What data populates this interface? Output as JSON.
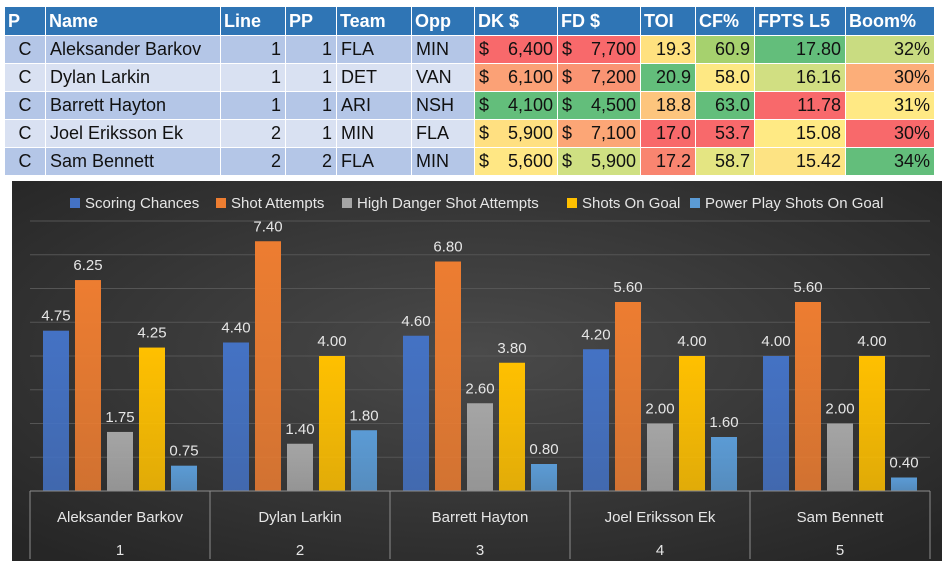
{
  "table": {
    "headers": [
      "P",
      "Name",
      "Line",
      "PP",
      "Team",
      "Opp",
      "DK $",
      "FD $",
      "TOI",
      "CF%",
      "FPTS L5",
      "Boom%"
    ],
    "rows": [
      {
        "p": "C",
        "name": "Aleksander Barkov",
        "line": "1",
        "pp": "1",
        "team": "FLA",
        "opp": "MIN",
        "dk": "6,400",
        "fd": "7,700",
        "toi": "19.3",
        "cf": "60.9",
        "fpts": "17.80",
        "boom": "32%",
        "colors": {
          "dk": "#f8696b",
          "fd": "#f8696b",
          "toi": "#ffe17f",
          "cf": "#a6d16e",
          "fpts": "#63be7b",
          "boom": "#c9dc81"
        }
      },
      {
        "p": "C",
        "name": "Dylan Larkin",
        "line": "1",
        "pp": "1",
        "team": "DET",
        "opp": "VAN",
        "dk": "6,100",
        "fd": "7,200",
        "toi": "20.9",
        "cf": "58.0",
        "fpts": "16.16",
        "boom": "30%",
        "colors": {
          "dk": "#fba176",
          "fd": "#fa9473",
          "toi": "#63be7b",
          "cf": "#fee883",
          "fpts": "#d1df82",
          "boom": "#fcae79"
        }
      },
      {
        "p": "C",
        "name": "Barrett Hayton",
        "line": "1",
        "pp": "1",
        "team": "ARI",
        "opp": "NSH",
        "dk": "4,100",
        "fd": "4,500",
        "toi": "18.8",
        "cf": "63.0",
        "fpts": "11.78",
        "boom": "31%",
        "colors": {
          "dk": "#63be7b",
          "fd": "#63be7b",
          "toi": "#fdc57d",
          "cf": "#63be7b",
          "fpts": "#f8696b",
          "boom": "#ffe984"
        }
      },
      {
        "p": "C",
        "name": "Joel Eriksson Ek",
        "line": "2",
        "pp": "1",
        "team": "MIN",
        "opp": "FLA",
        "dk": "5,900",
        "fd": "7,100",
        "toi": "17.0",
        "cf": "53.7",
        "fpts": "15.08",
        "boom": "30%",
        "colors": {
          "dk": "#ffe081",
          "fd": "#fca676",
          "toi": "#f8696b",
          "cf": "#f8696b",
          "fpts": "#ffea84",
          "boom": "#f8696b"
        }
      },
      {
        "p": "C",
        "name": "Sam Bennett",
        "line": "2",
        "pp": "2",
        "team": "FLA",
        "opp": "MIN",
        "dk": "5,600",
        "fd": "5,900",
        "toi": "17.2",
        "cf": "58.7",
        "fpts": "15.42",
        "boom": "34%",
        "colors": {
          "dk": "#ffe784",
          "fd": "#cfe082",
          "toi": "#f98570",
          "cf": "#e4e582",
          "fpts": "#fde383",
          "boom": "#63be7b"
        }
      }
    ]
  },
  "chart_data": {
    "type": "bar",
    "background": "#3b3b3b",
    "legend_position": "top",
    "categories": [
      {
        "name": "Aleksander Barkov",
        "index": "1"
      },
      {
        "name": "Dylan Larkin",
        "index": "2"
      },
      {
        "name": "Barrett Hayton",
        "index": "3"
      },
      {
        "name": "Joel Eriksson Ek",
        "index": "4"
      },
      {
        "name": "Sam Bennett",
        "index": "5"
      }
    ],
    "series": [
      {
        "name": "Scoring Chances",
        "color": "#4472c4",
        "values": [
          4.75,
          4.4,
          4.6,
          4.2,
          4.0
        ],
        "labels": [
          "4.75",
          "4.40",
          "4.60",
          "4.20",
          "4.00"
        ]
      },
      {
        "name": "Shot Attempts",
        "color": "#ed7d31",
        "values": [
          6.25,
          7.4,
          6.8,
          5.6,
          5.6
        ],
        "labels": [
          "6.25",
          "7.40",
          "6.80",
          "5.60",
          "5.60"
        ]
      },
      {
        "name": "High Danger Shot Attempts",
        "color": "#a5a5a5",
        "values": [
          1.75,
          1.4,
          2.6,
          2.0,
          2.0
        ],
        "labels": [
          "1.75",
          "1.40",
          "2.60",
          "2.00",
          "2.00"
        ]
      },
      {
        "name": "Shots On Goal",
        "color": "#ffc000",
        "values": [
          4.25,
          4.0,
          3.8,
          4.0,
          4.0
        ],
        "labels": [
          "4.25",
          "4.00",
          "3.80",
          "4.00",
          "4.00"
        ]
      },
      {
        "name": "Power Play Shots On Goal",
        "color": "#5b9bd5",
        "values": [
          0.75,
          1.8,
          0.8,
          1.6,
          0.4
        ],
        "labels": [
          "0.75",
          "1.80",
          "0.80",
          "1.60",
          "0.40"
        ]
      }
    ],
    "ylim": [
      0,
      8
    ],
    "grid": true,
    "title": "",
    "xlabel": "",
    "ylabel": ""
  }
}
